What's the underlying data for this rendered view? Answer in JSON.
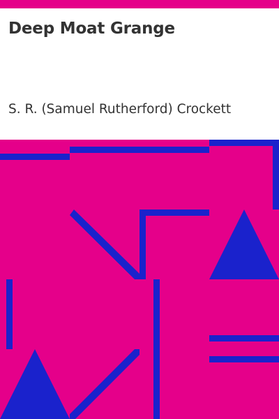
{
  "cover": {
    "title": "Deep Moat Grange",
    "author": "S. R. (Samuel Rutherford) Crockett"
  },
  "colors": {
    "background": "#e5008a",
    "panel": "#ffffff",
    "pattern": "#1a22cc",
    "text": "#333333"
  }
}
